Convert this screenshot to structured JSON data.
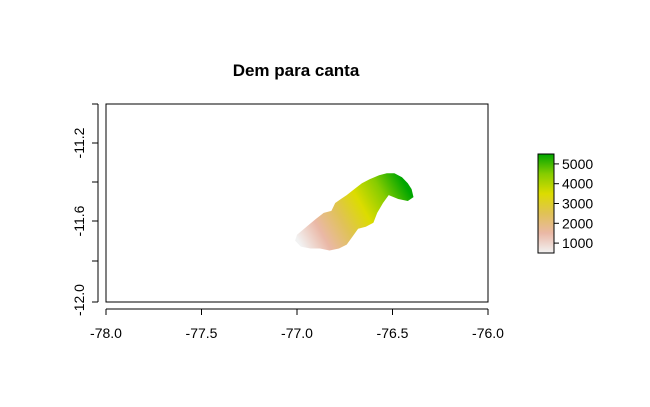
{
  "chart_data": {
    "type": "heatmap",
    "title": "Dem para canta",
    "xlabel": "",
    "ylabel": "",
    "xlim": [
      -78.0,
      -76.0
    ],
    "ylim": [
      -12.0,
      -11.0
    ],
    "x_ticks": [
      "-78.0",
      "-77.5",
      "-77.0",
      "-76.5",
      "-76.0"
    ],
    "x_tick_values": [
      -78.0,
      -77.5,
      -77.0,
      -76.5,
      -76.0
    ],
    "y_ticks": [
      "-11.2",
      "-11.6",
      "-12.0"
    ],
    "y_tick_values": [
      -11.2,
      -11.6,
      -12.0
    ],
    "grid": false,
    "legend": {
      "position": "right",
      "ticks": [
        "5000",
        "4000",
        "3000",
        "2000",
        "1000"
      ],
      "tick_values": [
        5000,
        4000,
        3000,
        2000,
        1000
      ],
      "range": [
        500,
        5500
      ],
      "colors": [
        "#f2f2f2",
        "#eab8a6",
        "#e0c256",
        "#dcdc00",
        "#86cc00",
        "#00a600"
      ]
    },
    "raster": {
      "boundary_lonlat": [
        [
          -77.0,
          -11.66
        ],
        [
          -76.95,
          -11.62
        ],
        [
          -76.9,
          -11.58
        ],
        [
          -76.86,
          -11.55
        ],
        [
          -76.82,
          -11.54
        ],
        [
          -76.8,
          -11.5
        ],
        [
          -76.77,
          -11.48
        ],
        [
          -76.74,
          -11.46
        ],
        [
          -76.7,
          -11.43
        ],
        [
          -76.66,
          -11.4
        ],
        [
          -76.62,
          -11.38
        ],
        [
          -76.57,
          -11.36
        ],
        [
          -76.53,
          -11.35
        ],
        [
          -76.49,
          -11.35
        ],
        [
          -76.45,
          -11.37
        ],
        [
          -76.42,
          -11.4
        ],
        [
          -76.4,
          -11.43
        ],
        [
          -76.39,
          -11.47
        ],
        [
          -76.42,
          -11.49
        ],
        [
          -76.47,
          -11.48
        ],
        [
          -76.52,
          -11.46
        ],
        [
          -76.55,
          -11.5
        ],
        [
          -76.58,
          -11.55
        ],
        [
          -76.6,
          -11.6
        ],
        [
          -76.64,
          -11.62
        ],
        [
          -76.68,
          -11.63
        ],
        [
          -76.71,
          -11.67
        ],
        [
          -76.74,
          -11.71
        ],
        [
          -76.78,
          -11.73
        ],
        [
          -76.83,
          -11.74
        ],
        [
          -76.88,
          -11.73
        ],
        [
          -76.93,
          -11.73
        ],
        [
          -76.98,
          -11.72
        ],
        [
          -77.01,
          -11.69
        ]
      ],
      "elevation_gradient": {
        "low_point": [
          -77.0,
          -11.68
        ],
        "high_point": [
          -76.45,
          -11.38
        ],
        "min": 500,
        "max": 5400
      }
    }
  }
}
